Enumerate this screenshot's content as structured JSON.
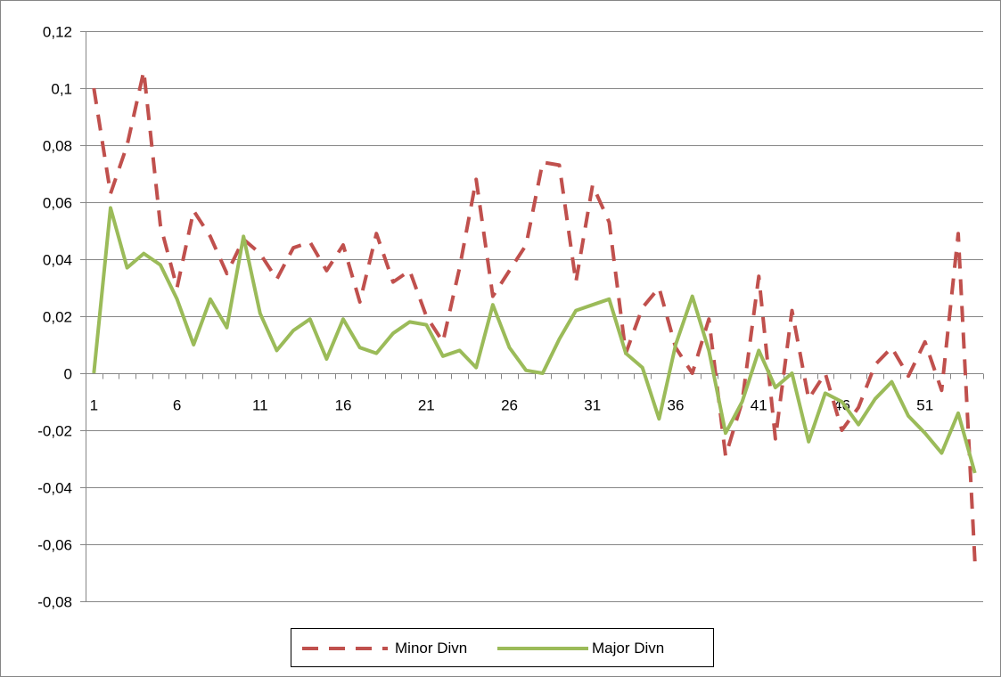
{
  "chart_data": {
    "type": "line",
    "title": "",
    "xlabel": "",
    "ylabel": "",
    "ylim": [
      -0.08,
      0.12
    ],
    "y_ticks": [
      0.12,
      0.1,
      0.08,
      0.06,
      0.04,
      0.02,
      0,
      -0.02,
      -0.04,
      -0.06,
      -0.08
    ],
    "y_tick_labels": [
      "0,12",
      "0,1",
      "0,08",
      "0,06",
      "0,04",
      "0,02",
      "0",
      "-0,02",
      "-0,04",
      "-0,06",
      "-0,08"
    ],
    "x_ticks": [
      1,
      6,
      11,
      16,
      21,
      26,
      31,
      36,
      41,
      46,
      51
    ],
    "x_tick_labels": [
      "1",
      "6",
      "11",
      "16",
      "21",
      "26",
      "31",
      "36",
      "41",
      "46",
      "51"
    ],
    "x_range": [
      1,
      54
    ],
    "grid": "horizontal",
    "legend_position": "bottom",
    "series": [
      {
        "name": "Minor Divn",
        "color": "#C0504D",
        "style": "dashed",
        "values": [
          0.1,
          0.063,
          0.08,
          0.106,
          0.052,
          0.03,
          0.057,
          0.048,
          0.035,
          0.047,
          0.042,
          0.033,
          0.044,
          0.046,
          0.036,
          0.045,
          0.025,
          0.049,
          0.032,
          0.036,
          0.02,
          0.011,
          0.037,
          0.068,
          0.027,
          0.036,
          0.045,
          0.074,
          0.073,
          0.032,
          0.066,
          0.053,
          0.007,
          0.023,
          0.03,
          0.009,
          0.0,
          0.019,
          -0.029,
          -0.01,
          0.034,
          -0.023,
          0.022,
          -0.009,
          0.0,
          -0.02,
          -0.012,
          0.003,
          0.009,
          -0.001,
          0.011,
          -0.006,
          0.049,
          -0.066
        ]
      },
      {
        "name": "Major Divn",
        "color": "#9BBB59",
        "style": "solid",
        "values": [
          0.0,
          0.058,
          0.037,
          0.042,
          0.038,
          0.026,
          0.01,
          0.026,
          0.016,
          0.048,
          0.021,
          0.008,
          0.015,
          0.019,
          0.005,
          0.019,
          0.009,
          0.007,
          0.014,
          0.018,
          0.017,
          0.006,
          0.008,
          0.002,
          0.024,
          0.009,
          0.001,
          0.0,
          0.012,
          0.022,
          0.024,
          0.026,
          0.007,
          0.002,
          -0.016,
          0.01,
          0.027,
          0.008,
          -0.021,
          -0.01,
          0.008,
          -0.005,
          0.0,
          -0.024,
          -0.007,
          -0.01,
          -0.018,
          -0.009,
          -0.003,
          -0.015,
          -0.021,
          -0.028,
          -0.014,
          -0.035
        ]
      }
    ]
  }
}
